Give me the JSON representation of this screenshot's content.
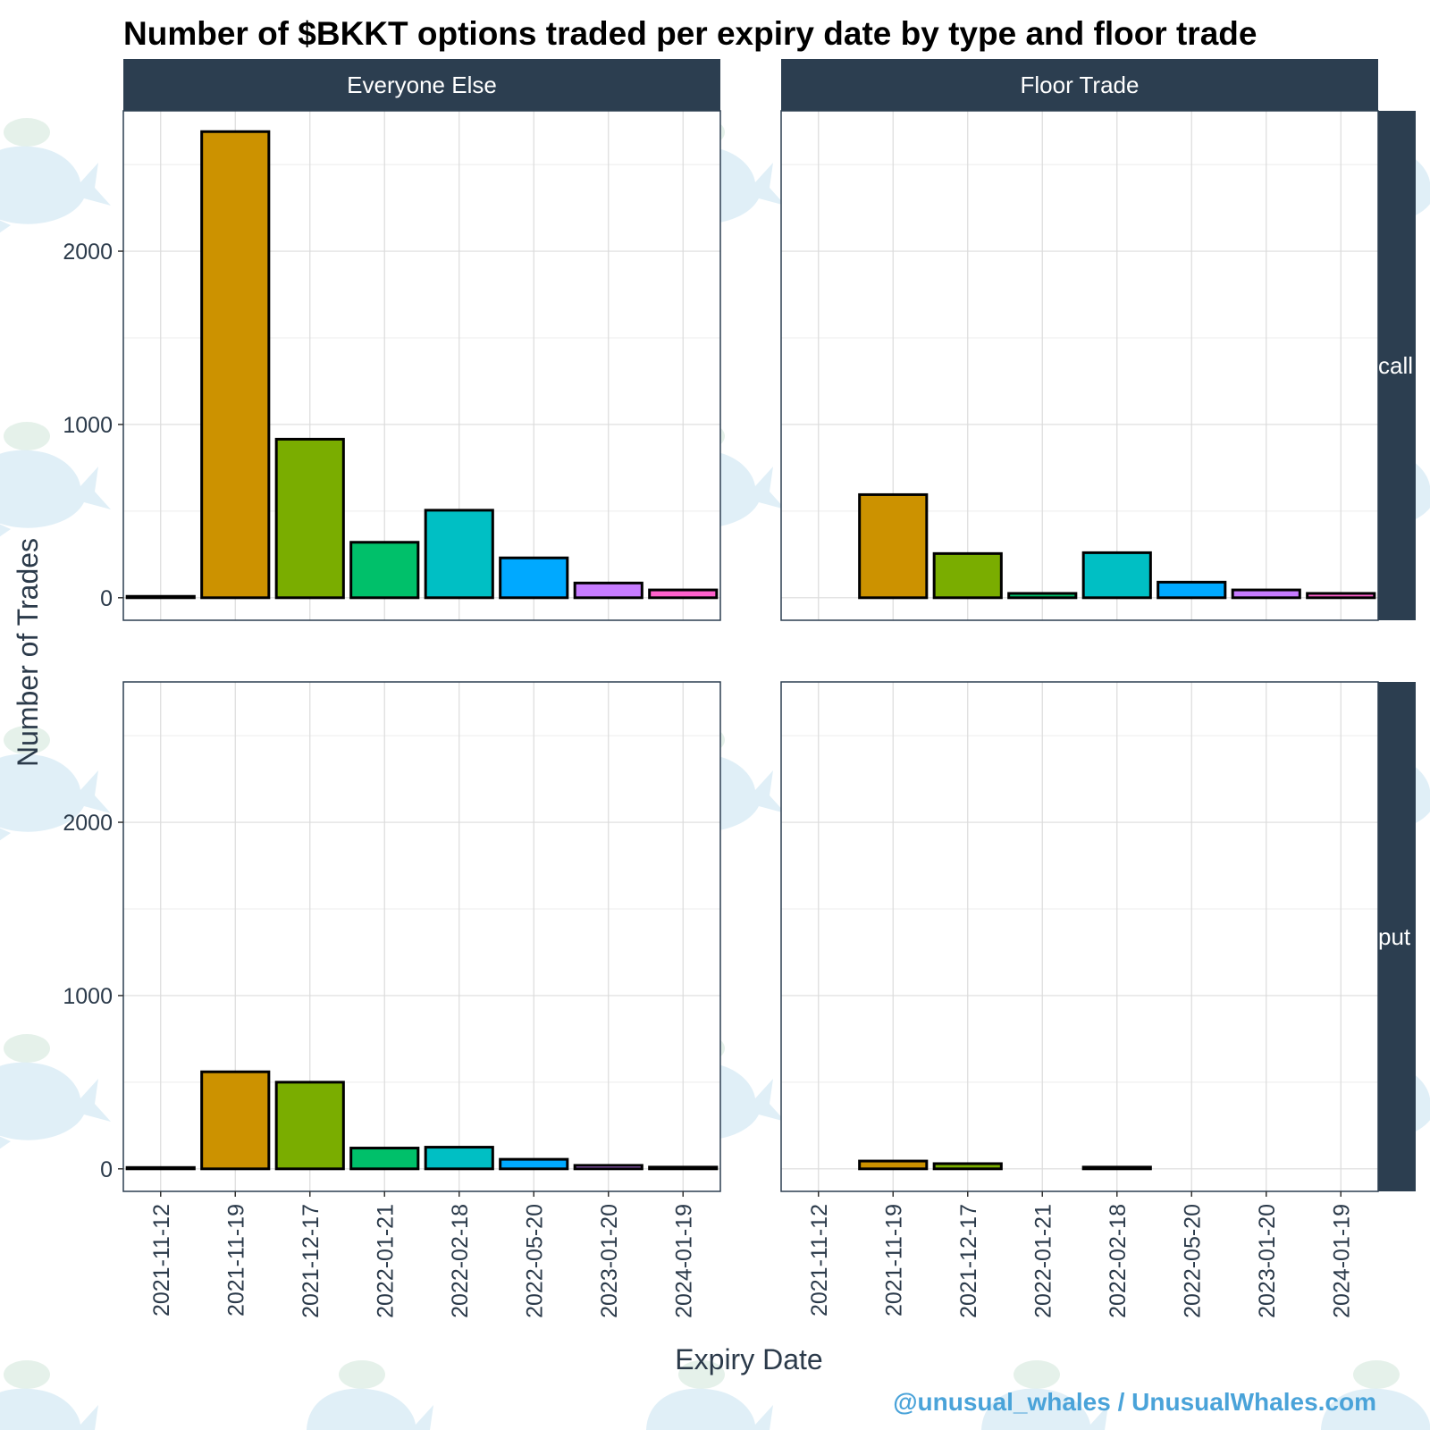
{
  "chart_data": {
    "type": "bar",
    "title": "Number of $BKKT options traded per expiry date by type and floor trade",
    "xlabel": "Expiry Date",
    "ylabel": "Number of Trades",
    "categories": [
      "2021-11-12",
      "2021-11-19",
      "2021-12-17",
      "2022-01-21",
      "2022-02-18",
      "2022-05-20",
      "2023-01-20",
      "2024-01-19"
    ],
    "colors": [
      "#000000",
      "#cc9200",
      "#7aad00",
      "#00c06a",
      "#00bfc4",
      "#00a9ff",
      "#c77cff",
      "#ff61cc"
    ],
    "ylim": [
      -130,
      2810
    ],
    "yticks": [
      0,
      1000,
      2000
    ],
    "grid": true,
    "legend": "none",
    "facet_columns": [
      "Everyone Else",
      "Floor Trade"
    ],
    "facet_rows": [
      "call",
      "put"
    ],
    "panels": [
      {
        "column": "Everyone Else",
        "row": "call",
        "values": [
          8,
          2690,
          915,
          320,
          505,
          230,
          85,
          45
        ]
      },
      {
        "column": "Floor Trade",
        "row": "call",
        "values": [
          null,
          595,
          255,
          25,
          260,
          90,
          45,
          25
        ]
      },
      {
        "column": "Everyone Else",
        "row": "put",
        "values": [
          3,
          560,
          500,
          120,
          125,
          55,
          20,
          10
        ]
      },
      {
        "column": "Floor Trade",
        "row": "put",
        "values": [
          null,
          45,
          30,
          null,
          10,
          null,
          null,
          null
        ]
      }
    ]
  },
  "credit": "@unusual_whales / UnusualWhales.com"
}
